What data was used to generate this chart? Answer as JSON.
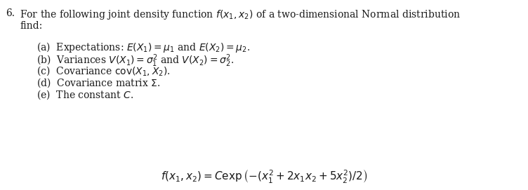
{
  "background_color": "#ffffff",
  "text_color": "#1a1a1a",
  "fig_width": 7.52,
  "fig_height": 2.71,
  "dpi": 100,
  "number": "6.",
  "intro_line1": "For the following joint density function $f(x_1, x_2)$ of a two-dimensional Normal distribution",
  "intro_line2": "find:",
  "items": [
    "(a)  Expectations: $E(X_1) = \\mu_1$ and $E(X_2) = \\mu_2$.",
    "(b)  Variances $V(X_1) = \\sigma_1^2$ and $V(X_2) = \\sigma_2^2$.",
    "(c)  Covariance $\\mathrm{cov}(X_1, X_2)$.",
    "(d)  Covariance matrix $\\Sigma$.",
    "(e)  The constant $C$."
  ],
  "formula": "$f(x_1, x_2) = C \\exp\\left(-(x_1^2 + 2x_1x_2 + 5x_2^2)/2\\right)$",
  "fontsize_main": 10,
  "fontsize_formula": 11
}
